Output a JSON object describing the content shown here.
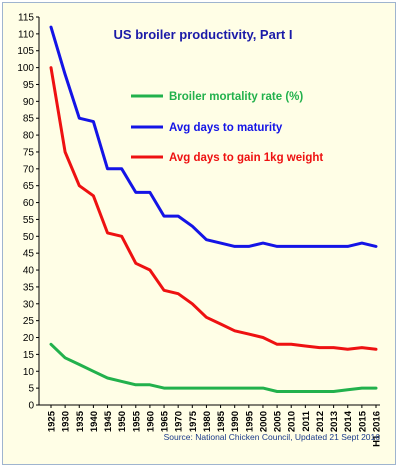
{
  "chart_data": {
    "type": "line",
    "title": "US broiler productivity, Part I",
    "source": "Source: National Chicken Council, Updated 21 Sept 2016",
    "categories": [
      "1925",
      "1930",
      "1935",
      "1940",
      "1945",
      "1950",
      "1955",
      "1960",
      "1965",
      "1970",
      "1975",
      "1980",
      "1985",
      "1990",
      "1995",
      "2000",
      "2005",
      "2010",
      "2011",
      "2012",
      "2013",
      "2014",
      "2015",
      "H1 2016"
    ],
    "series": [
      {
        "name": "Broiler mortality rate (%)",
        "color": "#22b14c",
        "values": [
          18,
          14,
          12,
          10,
          8,
          7,
          6,
          6,
          5,
          5,
          5,
          5,
          5,
          5,
          5,
          5,
          4,
          4,
          4,
          4,
          4,
          4.5,
          5,
          5
        ]
      },
      {
        "name": "Avg days to maturity",
        "color": "#1414e6",
        "values": [
          112,
          98,
          85,
          84,
          70,
          70,
          63,
          63,
          56,
          56,
          53,
          49,
          48,
          47,
          47,
          48,
          47,
          47,
          47,
          47,
          47,
          47,
          48,
          47
        ]
      },
      {
        "name": "Avg days to gain 1kg weight",
        "color": "#ee1111",
        "values": [
          100,
          75,
          65,
          62,
          51,
          50,
          42,
          40,
          34,
          33,
          30,
          26,
          24,
          22,
          21,
          20,
          18,
          18,
          17.5,
          17,
          17,
          16.5,
          17,
          16.5
        ]
      }
    ],
    "ylim": [
      0,
      115
    ],
    "yticks": [
      0,
      5,
      10,
      15,
      20,
      25,
      30,
      35,
      40,
      45,
      50,
      55,
      60,
      65,
      70,
      75,
      80,
      85,
      90,
      95,
      100,
      105,
      110,
      115
    ],
    "grid": false,
    "legend_position": "center-right"
  }
}
